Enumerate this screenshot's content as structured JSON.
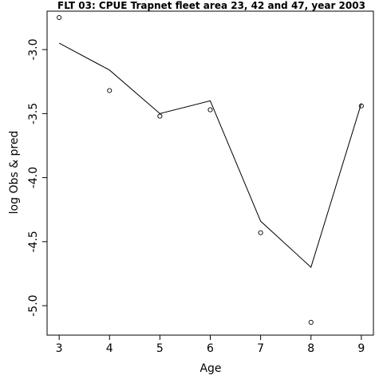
{
  "chart_data": {
    "type": "line",
    "title": "FLT 03: CPUE Trapnet fleet area 23, 42 and 47, year 2003",
    "xlabel": "Age",
    "ylabel": "log Obs & pred",
    "x": [
      3,
      4,
      5,
      6,
      7,
      8,
      9
    ],
    "x_ticks": [
      "3",
      "4",
      "5",
      "6",
      "7",
      "8",
      "9"
    ],
    "y_ticks": [
      "-3.0",
      "-3.5",
      "-4.0",
      "-4.5",
      "-5.0"
    ],
    "y_tick_values": [
      -3.0,
      -3.5,
      -4.0,
      -4.5,
      -5.0
    ],
    "xlim": [
      2.76,
      9.24
    ],
    "ylim": [
      -5.23,
      -2.7
    ],
    "series": [
      {
        "kind": "line",
        "values": [
          -2.95,
          -3.16,
          -3.5,
          -3.4,
          -4.34,
          -4.7,
          -3.42
        ]
      },
      {
        "kind": "points",
        "values": [
          -2.75,
          -3.32,
          -3.52,
          -3.47,
          -4.43,
          -5.13,
          -3.44
        ]
      }
    ],
    "grid": false,
    "legend": "none",
    "colors": {
      "line": "#000000",
      "points": "#000000",
      "background": "#ffffff"
    }
  }
}
